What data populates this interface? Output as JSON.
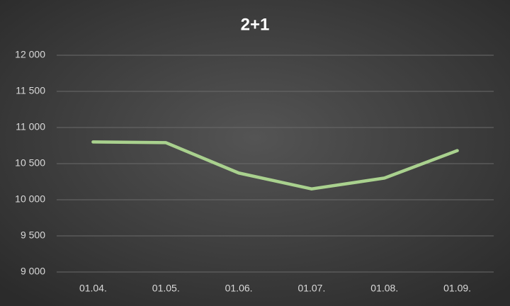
{
  "chart_data": {
    "type": "line",
    "title": "2+1",
    "categories": [
      "01.04.",
      "01.05.",
      "01.06.",
      "01.07.",
      "01.08.",
      "01.09."
    ],
    "values": [
      10800,
      10790,
      10370,
      10150,
      10300,
      10680
    ],
    "color": "#a9d18e",
    "ylim": [
      9000,
      12000
    ],
    "yticks": [
      {
        "value": 9000,
        "label": "9 000"
      },
      {
        "value": 9500,
        "label": "9 500"
      },
      {
        "value": 10000,
        "label": "10 000"
      },
      {
        "value": 10500,
        "label": "10 500"
      },
      {
        "value": 11000,
        "label": "11 000"
      },
      {
        "value": 11500,
        "label": "11 500"
      },
      {
        "value": 12000,
        "label": "12 000"
      }
    ],
    "grid": true
  }
}
